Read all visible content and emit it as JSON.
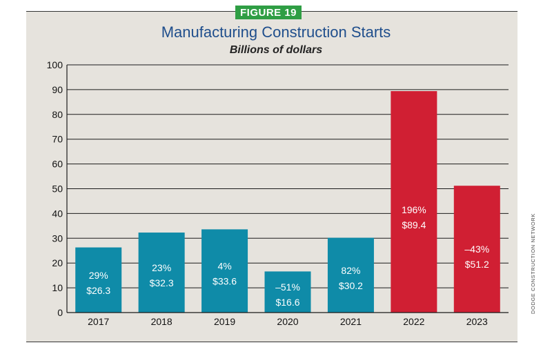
{
  "figure_badge": "FIGURE 19",
  "credit": "DODGE CONSTRUCTION NETWORK",
  "chart_data": {
    "type": "bar",
    "title": "Manufacturing Construction Starts",
    "subtitle": "Billions of dollars",
    "xlabel": "",
    "ylabel": "",
    "ylim": [
      0,
      100
    ],
    "yticks": [
      0,
      10,
      20,
      30,
      40,
      50,
      60,
      70,
      80,
      90,
      100
    ],
    "grid": true,
    "categories": [
      "2017",
      "2018",
      "2019",
      "2020",
      "2021",
      "2022",
      "2023"
    ],
    "values": [
      26.3,
      32.3,
      33.6,
      16.6,
      30.2,
      89.4,
      51.2
    ],
    "pct_labels": [
      "29%",
      "23%",
      "4%",
      "–51%",
      "82%",
      "196%",
      "–43%"
    ],
    "value_labels": [
      "$26.3",
      "$32.3",
      "$33.6",
      "$16.6",
      "$30.2",
      "$89.4",
      "$51.2"
    ],
    "colors": [
      "#0f8ba8",
      "#0f8ba8",
      "#0f8ba8",
      "#0f8ba8",
      "#0f8ba8",
      "#d01f33",
      "#d01f33"
    ]
  }
}
